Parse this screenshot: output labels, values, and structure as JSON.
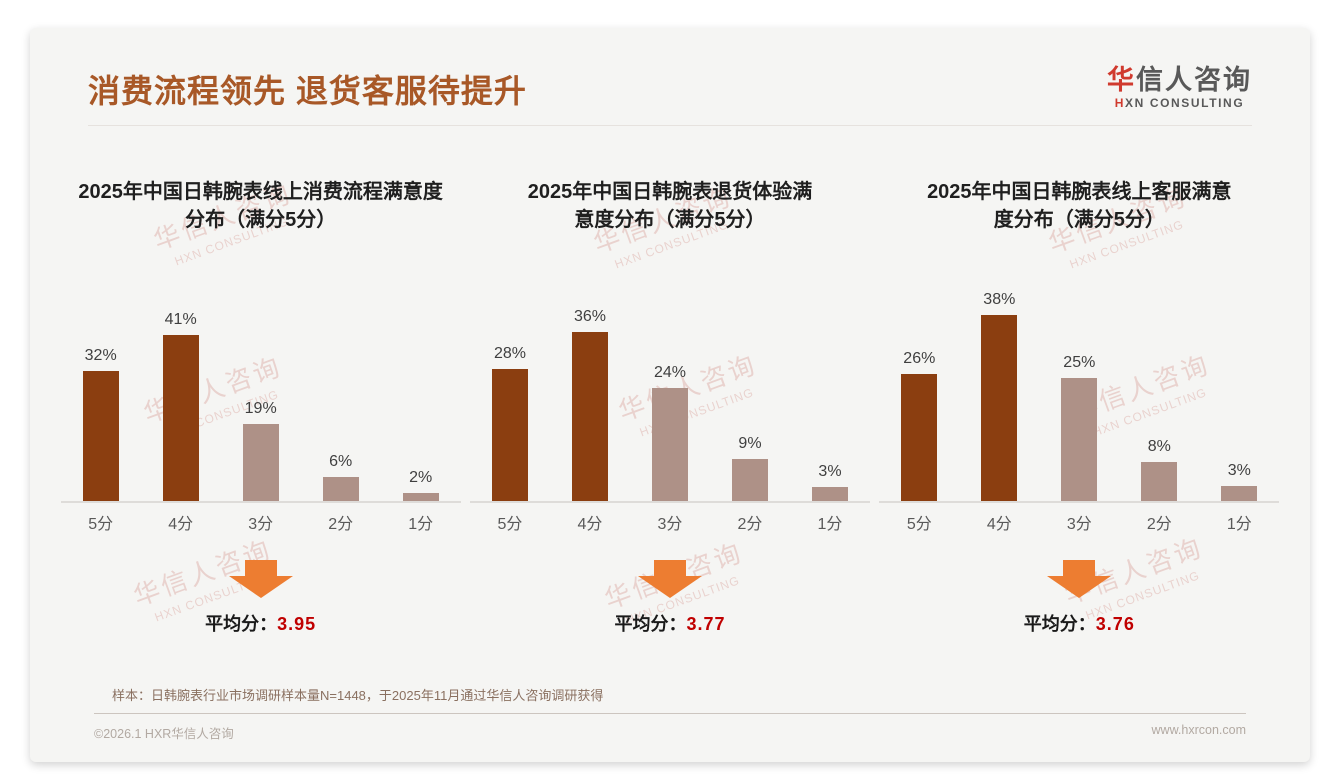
{
  "header": {
    "title": "消费流程领先 退货客服待提升",
    "logo": {
      "cn_red": "华",
      "cn_rest": "信人咨询",
      "en_red": "H",
      "en_rest": "XN CONSULTING"
    }
  },
  "watermark": {
    "line1": "华信人咨询",
    "line2": "HXN CONSULTING"
  },
  "chart_data": [
    {
      "type": "bar",
      "title": "2025年中国日韩腕表线上消费流程满意度\n分布（满分5分）",
      "categories": [
        "5分",
        "4分",
        "3分",
        "2分",
        "1分"
      ],
      "values": [
        32,
        41,
        19,
        6,
        2
      ],
      "unit": "%",
      "data_labels": [
        "32%",
        "41%",
        "19%",
        "6%",
        "2%"
      ],
      "bar_colors": [
        "#8B3E10",
        "#8B3E10",
        "#AE9187",
        "#AE9187",
        "#AE9187"
      ],
      "average_label": "平均分：",
      "average_value": "3.95",
      "grid": false,
      "legend": "none"
    },
    {
      "type": "bar",
      "title": "2025年中国日韩腕表退货体验满\n意度分布（满分5分）",
      "categories": [
        "5分",
        "4分",
        "3分",
        "2分",
        "1分"
      ],
      "values": [
        28,
        36,
        24,
        9,
        3
      ],
      "unit": "%",
      "data_labels": [
        "28%",
        "36%",
        "24%",
        "9%",
        "3%"
      ],
      "bar_colors": [
        "#8B3E10",
        "#8B3E10",
        "#AE9187",
        "#AE9187",
        "#AE9187"
      ],
      "average_label": "平均分：",
      "average_value": "3.77",
      "grid": false,
      "legend": "none"
    },
    {
      "type": "bar",
      "title": "2025年中国日韩腕表线上客服满意\n度分布（满分5分）",
      "categories": [
        "5分",
        "4分",
        "3分",
        "2分",
        "1分"
      ],
      "values": [
        26,
        38,
        25,
        8,
        3
      ],
      "unit": "%",
      "data_labels": [
        "26%",
        "38%",
        "25%",
        "8%",
        "3%"
      ],
      "bar_colors": [
        "#8B3E10",
        "#8B3E10",
        "#AE9187",
        "#AE9187",
        "#AE9187"
      ],
      "average_label": "平均分：",
      "average_value": "3.76",
      "grid": false,
      "legend": "none"
    }
  ],
  "footer": {
    "note": "样本：日韩腕表行业市场调研样本量N=1448，于2025年11月通过华信人咨询调研获得",
    "left": "©2026.1 HXR华信人咨询",
    "right": "www.hxrcon.com"
  },
  "colors": {
    "title_accent": "#A85827",
    "bar_dark": "#8B3E10",
    "bar_light": "#AE9187",
    "arrow_orange": "#ED7D31",
    "average_red": "#C00000",
    "logo_red": "#D03A2E",
    "watermark_pink": "#D79B94",
    "card_background": "#F5F5F3"
  }
}
